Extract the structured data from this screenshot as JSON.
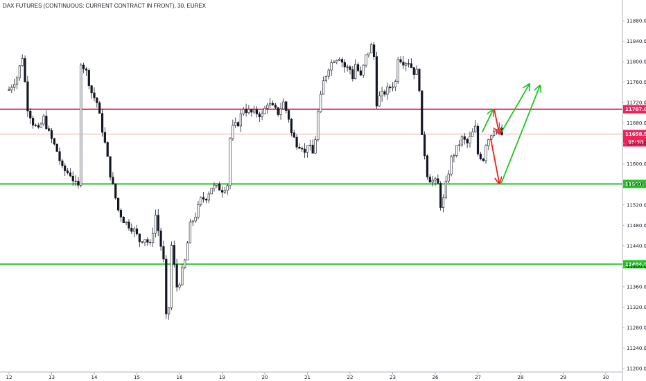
{
  "header": {
    "title": "DAX FUTURES (CONTINUOUS: CURRENT CONTRACT IN FRONT), 30, EUREX"
  },
  "colors": {
    "up_candle": "#131722",
    "down_candle": "#131722",
    "resistance": "#f0245a",
    "support": "#21c421",
    "last_price_line": "#f08080",
    "last_price_tag": "#f0245a",
    "arrow_up": "#21c421",
    "arrow_down": "#f01e1e",
    "axis_text": "#131722"
  },
  "chart_data": {
    "type": "candlestick",
    "x_axis": {
      "tick_labels": [
        "12",
        "13",
        "14",
        "15",
        "16",
        "19",
        "20",
        "21",
        "22",
        "23",
        "26",
        "27",
        "28",
        "29",
        "30"
      ]
    },
    "y_axis": {
      "range": [
        11200,
        11900
      ],
      "tick_labels": [
        "11880.0",
        "11840.0",
        "11800.0",
        "11760.0",
        "11720.0",
        "11680.0",
        "11640.0",
        "11600.0",
        "11560.0",
        "11520.0",
        "11480.0",
        "11440.0",
        "11400.0",
        "11360.0",
        "11320.0",
        "11280.0",
        "11240.0",
        "11200.0"
      ],
      "ticks": [
        11880,
        11840,
        11800,
        11760,
        11720,
        11680,
        11640,
        11600,
        11560,
        11520,
        11480,
        11440,
        11400,
        11360,
        11320,
        11280,
        11240,
        11200
      ]
    },
    "path": [
      [
        0,
        11745
      ],
      [
        3,
        11770
      ],
      [
        5,
        11810
      ],
      [
        7,
        11710
      ],
      [
        9,
        11680
      ],
      [
        11,
        11665
      ],
      [
        13,
        11690
      ],
      [
        15,
        11660
      ],
      [
        18,
        11625
      ],
      [
        20,
        11590
      ],
      [
        23,
        11580
      ],
      [
        25,
        11560
      ],
      [
        26,
        11555
      ],
      [
        27,
        11800
      ],
      [
        28,
        11790
      ],
      [
        29,
        11780
      ],
      [
        31,
        11740
      ],
      [
        33,
        11720
      ],
      [
        36,
        11640
      ],
      [
        38,
        11580
      ],
      [
        41,
        11510
      ],
      [
        43,
        11490
      ],
      [
        45,
        11480
      ],
      [
        47,
        11470
      ],
      [
        49,
        11450
      ],
      [
        51,
        11455
      ],
      [
        53,
        11440
      ],
      [
        54,
        11470
      ],
      [
        55,
        11500
      ],
      [
        56,
        11470
      ],
      [
        57,
        11440
      ],
      [
        58,
        11410
      ],
      [
        59,
        11300
      ],
      [
        60,
        11320
      ],
      [
        61,
        11440
      ],
      [
        62,
        11400
      ],
      [
        63,
        11360
      ],
      [
        64,
        11370
      ],
      [
        66,
        11410
      ],
      [
        68,
        11480
      ],
      [
        70,
        11500
      ],
      [
        72,
        11530
      ],
      [
        74,
        11535
      ],
      [
        76,
        11555
      ],
      [
        78,
        11555
      ],
      [
        80,
        11550
      ],
      [
        82,
        11560
      ],
      [
        83,
        11650
      ],
      [
        84,
        11670
      ],
      [
        86,
        11680
      ],
      [
        88,
        11710
      ],
      [
        89,
        11705
      ],
      [
        91,
        11700
      ],
      [
        93,
        11700
      ],
      [
        95,
        11695
      ],
      [
        97,
        11720
      ],
      [
        99,
        11710
      ],
      [
        101,
        11700
      ],
      [
        103,
        11720
      ],
      [
        105,
        11690
      ],
      [
        106,
        11660
      ],
      [
        107,
        11650
      ],
      [
        108,
        11640
      ],
      [
        110,
        11635
      ],
      [
        111,
        11620
      ],
      [
        112,
        11640
      ],
      [
        113,
        11630
      ],
      [
        114,
        11620
      ],
      [
        115,
        11650
      ],
      [
        116,
        11700
      ],
      [
        118,
        11760
      ],
      [
        120,
        11790
      ],
      [
        122,
        11805
      ],
      [
        124,
        11810
      ],
      [
        126,
        11790
      ],
      [
        128,
        11785
      ],
      [
        129,
        11770
      ],
      [
        130,
        11795
      ],
      [
        132,
        11770
      ],
      [
        134,
        11810
      ],
      [
        136,
        11830
      ],
      [
        137,
        11810
      ],
      [
        138,
        11720
      ],
      [
        139,
        11730
      ],
      [
        141,
        11740
      ],
      [
        143,
        11750
      ],
      [
        145,
        11760
      ],
      [
        146,
        11810
      ],
      [
        148,
        11800
      ],
      [
        150,
        11800
      ],
      [
        152,
        11780
      ],
      [
        153,
        11780
      ],
      [
        154,
        11750
      ],
      [
        155,
        11650
      ],
      [
        156,
        11620
      ],
      [
        157,
        11580
      ],
      [
        158,
        11570
      ],
      [
        160,
        11565
      ],
      [
        161,
        11560
      ],
      [
        162,
        11520
      ],
      [
        163,
        11530
      ],
      [
        164,
        11560
      ],
      [
        166,
        11610
      ],
      [
        168,
        11630
      ],
      [
        170,
        11650
      ],
      [
        172,
        11640
      ],
      [
        174,
        11660
      ],
      [
        175,
        11670
      ],
      [
        176,
        11620
      ],
      [
        178,
        11610
      ],
      [
        179,
        11640
      ],
      [
        180,
        11650
      ],
      [
        182,
        11670
      ],
      [
        184,
        11665
      ],
      [
        185,
        11657
      ]
    ],
    "annotations": {
      "horizontal_levels": [
        {
          "value": 11707.0,
          "label": "11707.0",
          "role": "resistance"
        },
        {
          "value": 11561.0,
          "label": "11561.0",
          "role": "support"
        },
        {
          "value": 11404.0,
          "label": "11404.0",
          "role": "support"
        }
      ],
      "last_price": {
        "value": 11658.5,
        "label": "11658.5",
        "countdown": "05:50"
      },
      "arrows": [
        {
          "color": "up",
          "from": [
            27.1,
            11662
          ],
          "to": [
            27.35,
            11705
          ]
        },
        {
          "color": "down",
          "from": [
            27.38,
            11708
          ],
          "to": [
            27.5,
            11660
          ]
        },
        {
          "color": "up",
          "from": [
            27.55,
            11662
          ],
          "to": [
            28.2,
            11755
          ]
        },
        {
          "color": "down",
          "from": [
            27.3,
            11650
          ],
          "to": [
            27.5,
            11563
          ]
        },
        {
          "color": "up",
          "from": [
            27.55,
            11563
          ],
          "to": [
            28.45,
            11752
          ]
        }
      ]
    }
  }
}
